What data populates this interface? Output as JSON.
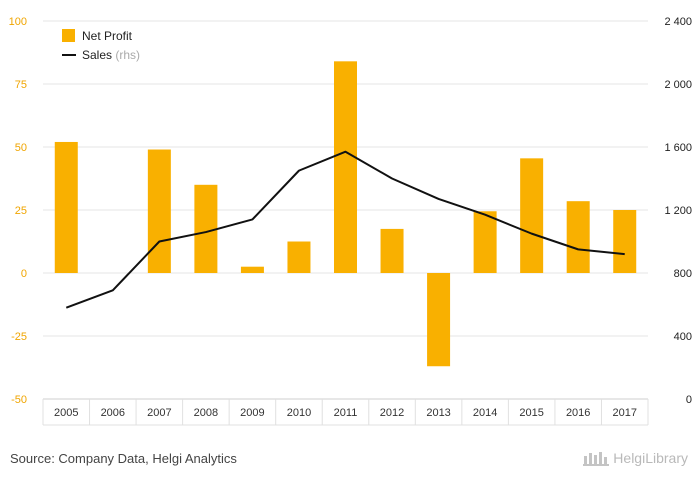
{
  "chart_data": {
    "type": "bar",
    "categories": [
      "2005",
      "2006",
      "2007",
      "2008",
      "2009",
      "2010",
      "2011",
      "2012",
      "2013",
      "2014",
      "2015",
      "2016",
      "2017"
    ],
    "series": [
      {
        "name": "Net Profit",
        "type": "bar",
        "axis": "left",
        "color": "#F9B000",
        "values": [
          52,
          0,
          49,
          35,
          2.5,
          12.5,
          84,
          17.5,
          -37,
          24.5,
          45.5,
          28.5,
          25
        ]
      },
      {
        "name": "Sales",
        "legend_suffix": "(rhs)",
        "type": "line",
        "axis": "right",
        "color": "#111111",
        "values": [
          580,
          690,
          1000,
          1060,
          1140,
          1450,
          1570,
          1400,
          1270,
          1170,
          1050,
          950,
          920
        ]
      }
    ],
    "left_axis": {
      "ylim": [
        -50,
        100
      ],
      "ticks": [
        "100",
        "75",
        "50",
        "25",
        "0",
        "-25",
        "-50"
      ],
      "tick_values": [
        100,
        75,
        50,
        25,
        0,
        -25,
        -50
      ],
      "color": "#F0A500"
    },
    "right_axis": {
      "ylim": [
        0,
        2400
      ],
      "ticks": [
        "2 400",
        "2 000",
        "1 600",
        "1 200",
        "800",
        "400",
        "0"
      ],
      "tick_values": [
        2400,
        2000,
        1600,
        1200,
        800,
        400,
        0
      ]
    },
    "grid": true,
    "legend_position": "top-left"
  },
  "footer": {
    "source": "Source: Company Data, Helgi Analytics",
    "brand": "HelgiLibrary"
  }
}
